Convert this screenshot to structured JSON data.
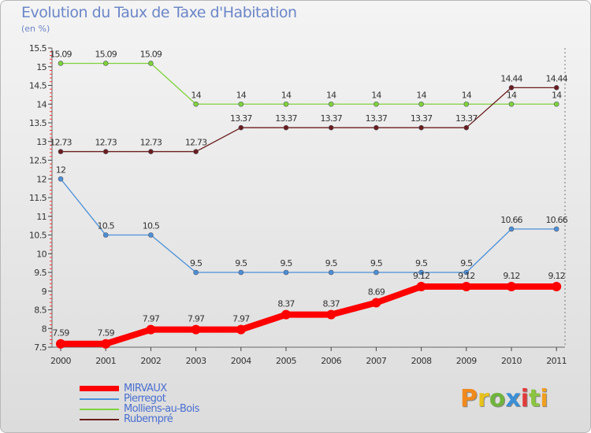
{
  "header": {
    "title": "Evolution du Taux de Taxe d'Habitation",
    "subtitle": "(en %)"
  },
  "brand": {
    "letters": [
      "P",
      "r",
      "o",
      "x",
      "i",
      "t",
      "i"
    ],
    "colors": [
      "#f08a1c",
      "#e8c21a",
      "#6fb43c",
      "#3a8fd6",
      "#e23a3a",
      "#8bc43f",
      "#f0a020"
    ]
  },
  "chart_data": {
    "type": "line",
    "title": "Evolution du Taux de Taxe d'Habitation",
    "ylabel": "(en %)",
    "xlabel": "",
    "categories": [
      "2000",
      "2001",
      "2002",
      "2003",
      "2004",
      "2005",
      "2006",
      "2007",
      "2008",
      "2009",
      "2010",
      "2011"
    ],
    "ylim": [
      7.5,
      15.5
    ],
    "yticks": [
      "7.5",
      "8",
      "8.5",
      "9",
      "9.5",
      "10",
      "10.5",
      "11",
      "11.5",
      "12",
      "12.5",
      "13",
      "13.5",
      "14",
      "14.5",
      "15",
      "15.5"
    ],
    "grid": false,
    "legend_position": "bottom-left",
    "series": [
      {
        "name": "MIRVAUX",
        "color": "#ff0000",
        "width": "thick",
        "values": [
          7.59,
          7.59,
          7.97,
          7.97,
          7.97,
          8.37,
          8.37,
          8.69,
          9.12,
          9.12,
          9.12,
          9.12
        ],
        "labels": [
          "7.59",
          "7.59",
          "7.97",
          "7.97",
          "7.97",
          "8.37",
          "8.37",
          "8.69",
          "9.12",
          "9.12",
          "9.12",
          "9.12"
        ]
      },
      {
        "name": "Pierregot",
        "color": "#4a90d9",
        "width": "thin",
        "values": [
          12,
          10.5,
          10.5,
          9.5,
          9.5,
          9.5,
          9.5,
          9.5,
          9.5,
          9.5,
          10.66,
          10.66
        ],
        "labels": [
          "12",
          "10.5",
          "10.5",
          "9.5",
          "9.5",
          "9.5",
          "9.5",
          "9.5",
          "9.5",
          "9.5",
          "10.66",
          "10.66"
        ]
      },
      {
        "name": "Molliens-au-Bois",
        "color": "#7ed33a",
        "width": "thin",
        "values": [
          15.09,
          15.09,
          15.09,
          14,
          14,
          14,
          14,
          14,
          14,
          14,
          14,
          14
        ],
        "labels": [
          "15.09",
          "15.09",
          "15.09",
          "14",
          "14",
          "14",
          "14",
          "14",
          "14",
          "14",
          "14",
          "14"
        ]
      },
      {
        "name": "Rubempré",
        "color": "#6b1c1c",
        "width": "thin",
        "values": [
          12.73,
          12.73,
          12.73,
          12.73,
          13.37,
          13.37,
          13.37,
          13.37,
          13.37,
          13.37,
          14.44,
          14.44
        ],
        "labels": [
          "12.73",
          "12.73",
          "12.73",
          "12.73",
          "13.37",
          "13.37",
          "13.37",
          "13.37",
          "13.37",
          "13.37",
          "14.44",
          "14.44"
        ]
      }
    ]
  }
}
